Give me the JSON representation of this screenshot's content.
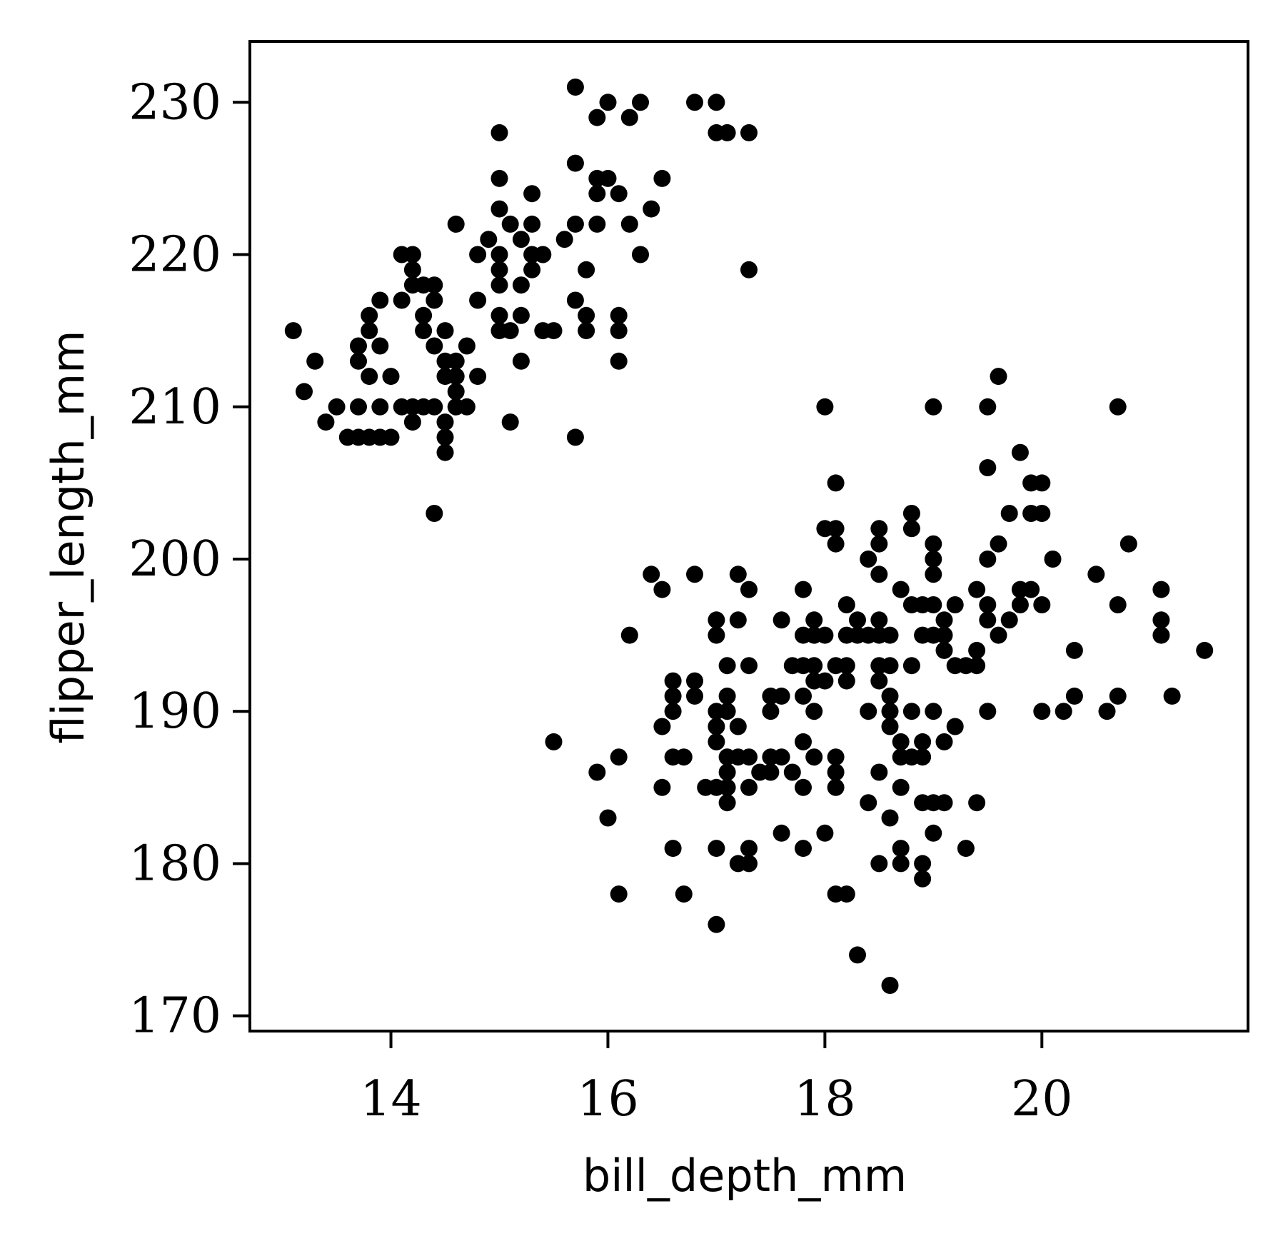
{
  "chart_data": {
    "type": "scatter",
    "title": "",
    "xlabel": "bill_depth_mm",
    "ylabel": "flipper_length_mm",
    "xlim": [
      12.7,
      21.9
    ],
    "ylim": [
      169,
      234
    ],
    "xticks": [
      14,
      16,
      18,
      20
    ],
    "xtick_labels": [
      "14",
      "16",
      "18",
      "20"
    ],
    "yticks": [
      170,
      180,
      190,
      200,
      210,
      220,
      230
    ],
    "ytick_labels": [
      "170",
      "180",
      "190",
      "200",
      "210",
      "220",
      "230"
    ],
    "grid": false,
    "legend": "none",
    "colors": {
      "points": "#000000",
      "axes": "#000000",
      "background": "#ffffff"
    },
    "series": [
      {
        "points": [
          [
            13.1,
            215
          ],
          [
            13.2,
            211
          ],
          [
            13.3,
            213
          ],
          [
            13.4,
            209
          ],
          [
            13.5,
            210
          ],
          [
            13.6,
            208
          ],
          [
            13.7,
            208
          ],
          [
            13.7,
            210
          ],
          [
            13.7,
            213
          ],
          [
            13.7,
            214
          ],
          [
            13.8,
            208
          ],
          [
            13.8,
            212
          ],
          [
            13.8,
            215
          ],
          [
            13.8,
            216
          ],
          [
            13.9,
            208
          ],
          [
            13.9,
            210
          ],
          [
            13.9,
            214
          ],
          [
            13.9,
            217
          ],
          [
            14.0,
            208
          ],
          [
            14.0,
            212
          ],
          [
            14.1,
            210
          ],
          [
            14.1,
            217
          ],
          [
            14.1,
            220
          ],
          [
            14.2,
            209
          ],
          [
            14.2,
            210
          ],
          [
            14.2,
            218
          ],
          [
            14.2,
            219
          ],
          [
            14.2,
            220
          ],
          [
            14.3,
            210
          ],
          [
            14.3,
            215
          ],
          [
            14.3,
            216
          ],
          [
            14.3,
            218
          ],
          [
            14.4,
            203
          ],
          [
            14.4,
            210
          ],
          [
            14.4,
            214
          ],
          [
            14.4,
            217
          ],
          [
            14.4,
            218
          ],
          [
            14.5,
            207
          ],
          [
            14.5,
            208
          ],
          [
            14.5,
            209
          ],
          [
            14.5,
            212
          ],
          [
            14.5,
            213
          ],
          [
            14.5,
            215
          ],
          [
            14.6,
            210
          ],
          [
            14.6,
            211
          ],
          [
            14.6,
            212
          ],
          [
            14.6,
            213
          ],
          [
            14.6,
            222
          ],
          [
            14.7,
            210
          ],
          [
            14.7,
            214
          ],
          [
            14.8,
            212
          ],
          [
            14.8,
            217
          ],
          [
            14.8,
            220
          ],
          [
            14.9,
            221
          ],
          [
            15.0,
            215
          ],
          [
            15.0,
            216
          ],
          [
            15.0,
            218
          ],
          [
            15.0,
            219
          ],
          [
            15.0,
            220
          ],
          [
            15.0,
            223
          ],
          [
            15.0,
            225
          ],
          [
            15.0,
            228
          ],
          [
            15.1,
            209
          ],
          [
            15.1,
            215
          ],
          [
            15.1,
            222
          ],
          [
            15.2,
            213
          ],
          [
            15.2,
            216
          ],
          [
            15.2,
            218
          ],
          [
            15.2,
            221
          ],
          [
            15.3,
            219
          ],
          [
            15.3,
            220
          ],
          [
            15.3,
            222
          ],
          [
            15.3,
            224
          ],
          [
            15.4,
            215
          ],
          [
            15.4,
            220
          ],
          [
            15.5,
            215
          ],
          [
            15.6,
            221
          ],
          [
            15.7,
            208
          ],
          [
            15.7,
            217
          ],
          [
            15.7,
            222
          ],
          [
            15.7,
            226
          ],
          [
            15.7,
            231
          ],
          [
            15.8,
            215
          ],
          [
            15.8,
            216
          ],
          [
            15.8,
            219
          ],
          [
            15.9,
            222
          ],
          [
            15.9,
            224
          ],
          [
            15.9,
            225
          ],
          [
            15.9,
            229
          ],
          [
            16.0,
            225
          ],
          [
            16.0,
            230
          ],
          [
            16.1,
            213
          ],
          [
            16.1,
            215
          ],
          [
            16.1,
            216
          ],
          [
            16.1,
            224
          ],
          [
            16.2,
            222
          ],
          [
            16.2,
            229
          ],
          [
            16.3,
            220
          ],
          [
            16.3,
            230
          ],
          [
            16.4,
            223
          ],
          [
            16.5,
            225
          ],
          [
            16.8,
            230
          ],
          [
            17.0,
            228
          ],
          [
            17.0,
            230
          ],
          [
            17.1,
            228
          ],
          [
            17.3,
            219
          ],
          [
            17.3,
            228
          ],
          [
            15.5,
            188
          ],
          [
            15.9,
            186
          ],
          [
            16.0,
            183
          ],
          [
            16.1,
            178
          ],
          [
            16.1,
            187
          ],
          [
            16.2,
            195
          ],
          [
            16.4,
            199
          ],
          [
            16.5,
            185
          ],
          [
            16.5,
            189
          ],
          [
            16.5,
            198
          ],
          [
            16.6,
            181
          ],
          [
            16.6,
            187
          ],
          [
            16.6,
            190
          ],
          [
            16.6,
            191
          ],
          [
            16.6,
            192
          ],
          [
            16.7,
            178
          ],
          [
            16.7,
            187
          ],
          [
            16.8,
            191
          ],
          [
            16.8,
            192
          ],
          [
            16.8,
            199
          ],
          [
            16.9,
            185
          ],
          [
            17.0,
            176
          ],
          [
            17.0,
            181
          ],
          [
            17.0,
            185
          ],
          [
            17.0,
            188
          ],
          [
            17.0,
            189
          ],
          [
            17.0,
            190
          ],
          [
            17.0,
            195
          ],
          [
            17.0,
            196
          ],
          [
            17.1,
            184
          ],
          [
            17.1,
            185
          ],
          [
            17.1,
            186
          ],
          [
            17.1,
            187
          ],
          [
            17.1,
            190
          ],
          [
            17.1,
            191
          ],
          [
            17.1,
            193
          ],
          [
            17.2,
            180
          ],
          [
            17.2,
            187
          ],
          [
            17.2,
            189
          ],
          [
            17.2,
            196
          ],
          [
            17.2,
            199
          ],
          [
            17.3,
            180
          ],
          [
            17.3,
            181
          ],
          [
            17.3,
            185
          ],
          [
            17.3,
            187
          ],
          [
            17.3,
            193
          ],
          [
            17.3,
            198
          ],
          [
            17.4,
            186
          ],
          [
            17.5,
            186
          ],
          [
            17.5,
            187
          ],
          [
            17.5,
            190
          ],
          [
            17.5,
            191
          ],
          [
            17.6,
            182
          ],
          [
            17.6,
            187
          ],
          [
            17.6,
            191
          ],
          [
            17.6,
            196
          ],
          [
            17.7,
            186
          ],
          [
            17.7,
            193
          ],
          [
            17.8,
            181
          ],
          [
            17.8,
            185
          ],
          [
            17.8,
            188
          ],
          [
            17.8,
            191
          ],
          [
            17.8,
            193
          ],
          [
            17.8,
            195
          ],
          [
            17.8,
            198
          ],
          [
            17.9,
            187
          ],
          [
            17.9,
            190
          ],
          [
            17.9,
            192
          ],
          [
            17.9,
            193
          ],
          [
            17.9,
            195
          ],
          [
            17.9,
            196
          ],
          [
            18.0,
            182
          ],
          [
            18.0,
            192
          ],
          [
            18.0,
            195
          ],
          [
            18.0,
            202
          ],
          [
            18.0,
            210
          ],
          [
            18.1,
            178
          ],
          [
            18.1,
            185
          ],
          [
            18.1,
            186
          ],
          [
            18.1,
            187
          ],
          [
            18.1,
            193
          ],
          [
            18.1,
            201
          ],
          [
            18.1,
            202
          ],
          [
            18.1,
            205
          ],
          [
            18.2,
            178
          ],
          [
            18.2,
            192
          ],
          [
            18.2,
            193
          ],
          [
            18.2,
            195
          ],
          [
            18.2,
            197
          ],
          [
            18.3,
            174
          ],
          [
            18.3,
            195
          ],
          [
            18.3,
            196
          ],
          [
            18.4,
            184
          ],
          [
            18.4,
            190
          ],
          [
            18.4,
            195
          ],
          [
            18.4,
            200
          ],
          [
            18.5,
            180
          ],
          [
            18.5,
            186
          ],
          [
            18.5,
            192
          ],
          [
            18.5,
            193
          ],
          [
            18.5,
            195
          ],
          [
            18.5,
            196
          ],
          [
            18.5,
            199
          ],
          [
            18.5,
            201
          ],
          [
            18.5,
            202
          ],
          [
            18.6,
            172
          ],
          [
            18.6,
            183
          ],
          [
            18.6,
            189
          ],
          [
            18.6,
            190
          ],
          [
            18.6,
            191
          ],
          [
            18.6,
            193
          ],
          [
            18.6,
            195
          ],
          [
            18.7,
            180
          ],
          [
            18.7,
            181
          ],
          [
            18.7,
            185
          ],
          [
            18.7,
            187
          ],
          [
            18.7,
            188
          ],
          [
            18.7,
            198
          ],
          [
            18.8,
            187
          ],
          [
            18.8,
            190
          ],
          [
            18.8,
            193
          ],
          [
            18.8,
            197
          ],
          [
            18.8,
            202
          ],
          [
            18.8,
            203
          ],
          [
            18.9,
            179
          ],
          [
            18.9,
            180
          ],
          [
            18.9,
            184
          ],
          [
            18.9,
            187
          ],
          [
            18.9,
            188
          ],
          [
            18.9,
            195
          ],
          [
            18.9,
            197
          ],
          [
            19.0,
            182
          ],
          [
            19.0,
            184
          ],
          [
            19.0,
            190
          ],
          [
            19.0,
            195
          ],
          [
            19.0,
            197
          ],
          [
            19.0,
            199
          ],
          [
            19.0,
            200
          ],
          [
            19.0,
            201
          ],
          [
            19.0,
            210
          ],
          [
            19.1,
            184
          ],
          [
            19.1,
            188
          ],
          [
            19.1,
            194
          ],
          [
            19.1,
            195
          ],
          [
            19.1,
            196
          ],
          [
            19.2,
            189
          ],
          [
            19.2,
            193
          ],
          [
            19.2,
            197
          ],
          [
            19.3,
            181
          ],
          [
            19.3,
            193
          ],
          [
            19.4,
            184
          ],
          [
            19.4,
            193
          ],
          [
            19.4,
            194
          ],
          [
            19.4,
            198
          ],
          [
            19.5,
            190
          ],
          [
            19.5,
            196
          ],
          [
            19.5,
            197
          ],
          [
            19.5,
            200
          ],
          [
            19.5,
            206
          ],
          [
            19.5,
            210
          ],
          [
            19.6,
            195
          ],
          [
            19.6,
            201
          ],
          [
            19.6,
            212
          ],
          [
            19.7,
            196
          ],
          [
            19.7,
            203
          ],
          [
            19.8,
            197
          ],
          [
            19.8,
            198
          ],
          [
            19.8,
            207
          ],
          [
            19.9,
            198
          ],
          [
            19.9,
            203
          ],
          [
            19.9,
            205
          ],
          [
            20.0,
            190
          ],
          [
            20.0,
            197
          ],
          [
            20.0,
            203
          ],
          [
            20.0,
            205
          ],
          [
            20.1,
            200
          ],
          [
            20.2,
            190
          ],
          [
            20.3,
            191
          ],
          [
            20.3,
            194
          ],
          [
            20.5,
            199
          ],
          [
            20.6,
            190
          ],
          [
            20.7,
            191
          ],
          [
            20.7,
            197
          ],
          [
            20.7,
            210
          ],
          [
            20.8,
            201
          ],
          [
            21.1,
            195
          ],
          [
            21.1,
            196
          ],
          [
            21.1,
            198
          ],
          [
            21.2,
            191
          ],
          [
            21.5,
            194
          ]
        ]
      }
    ]
  }
}
